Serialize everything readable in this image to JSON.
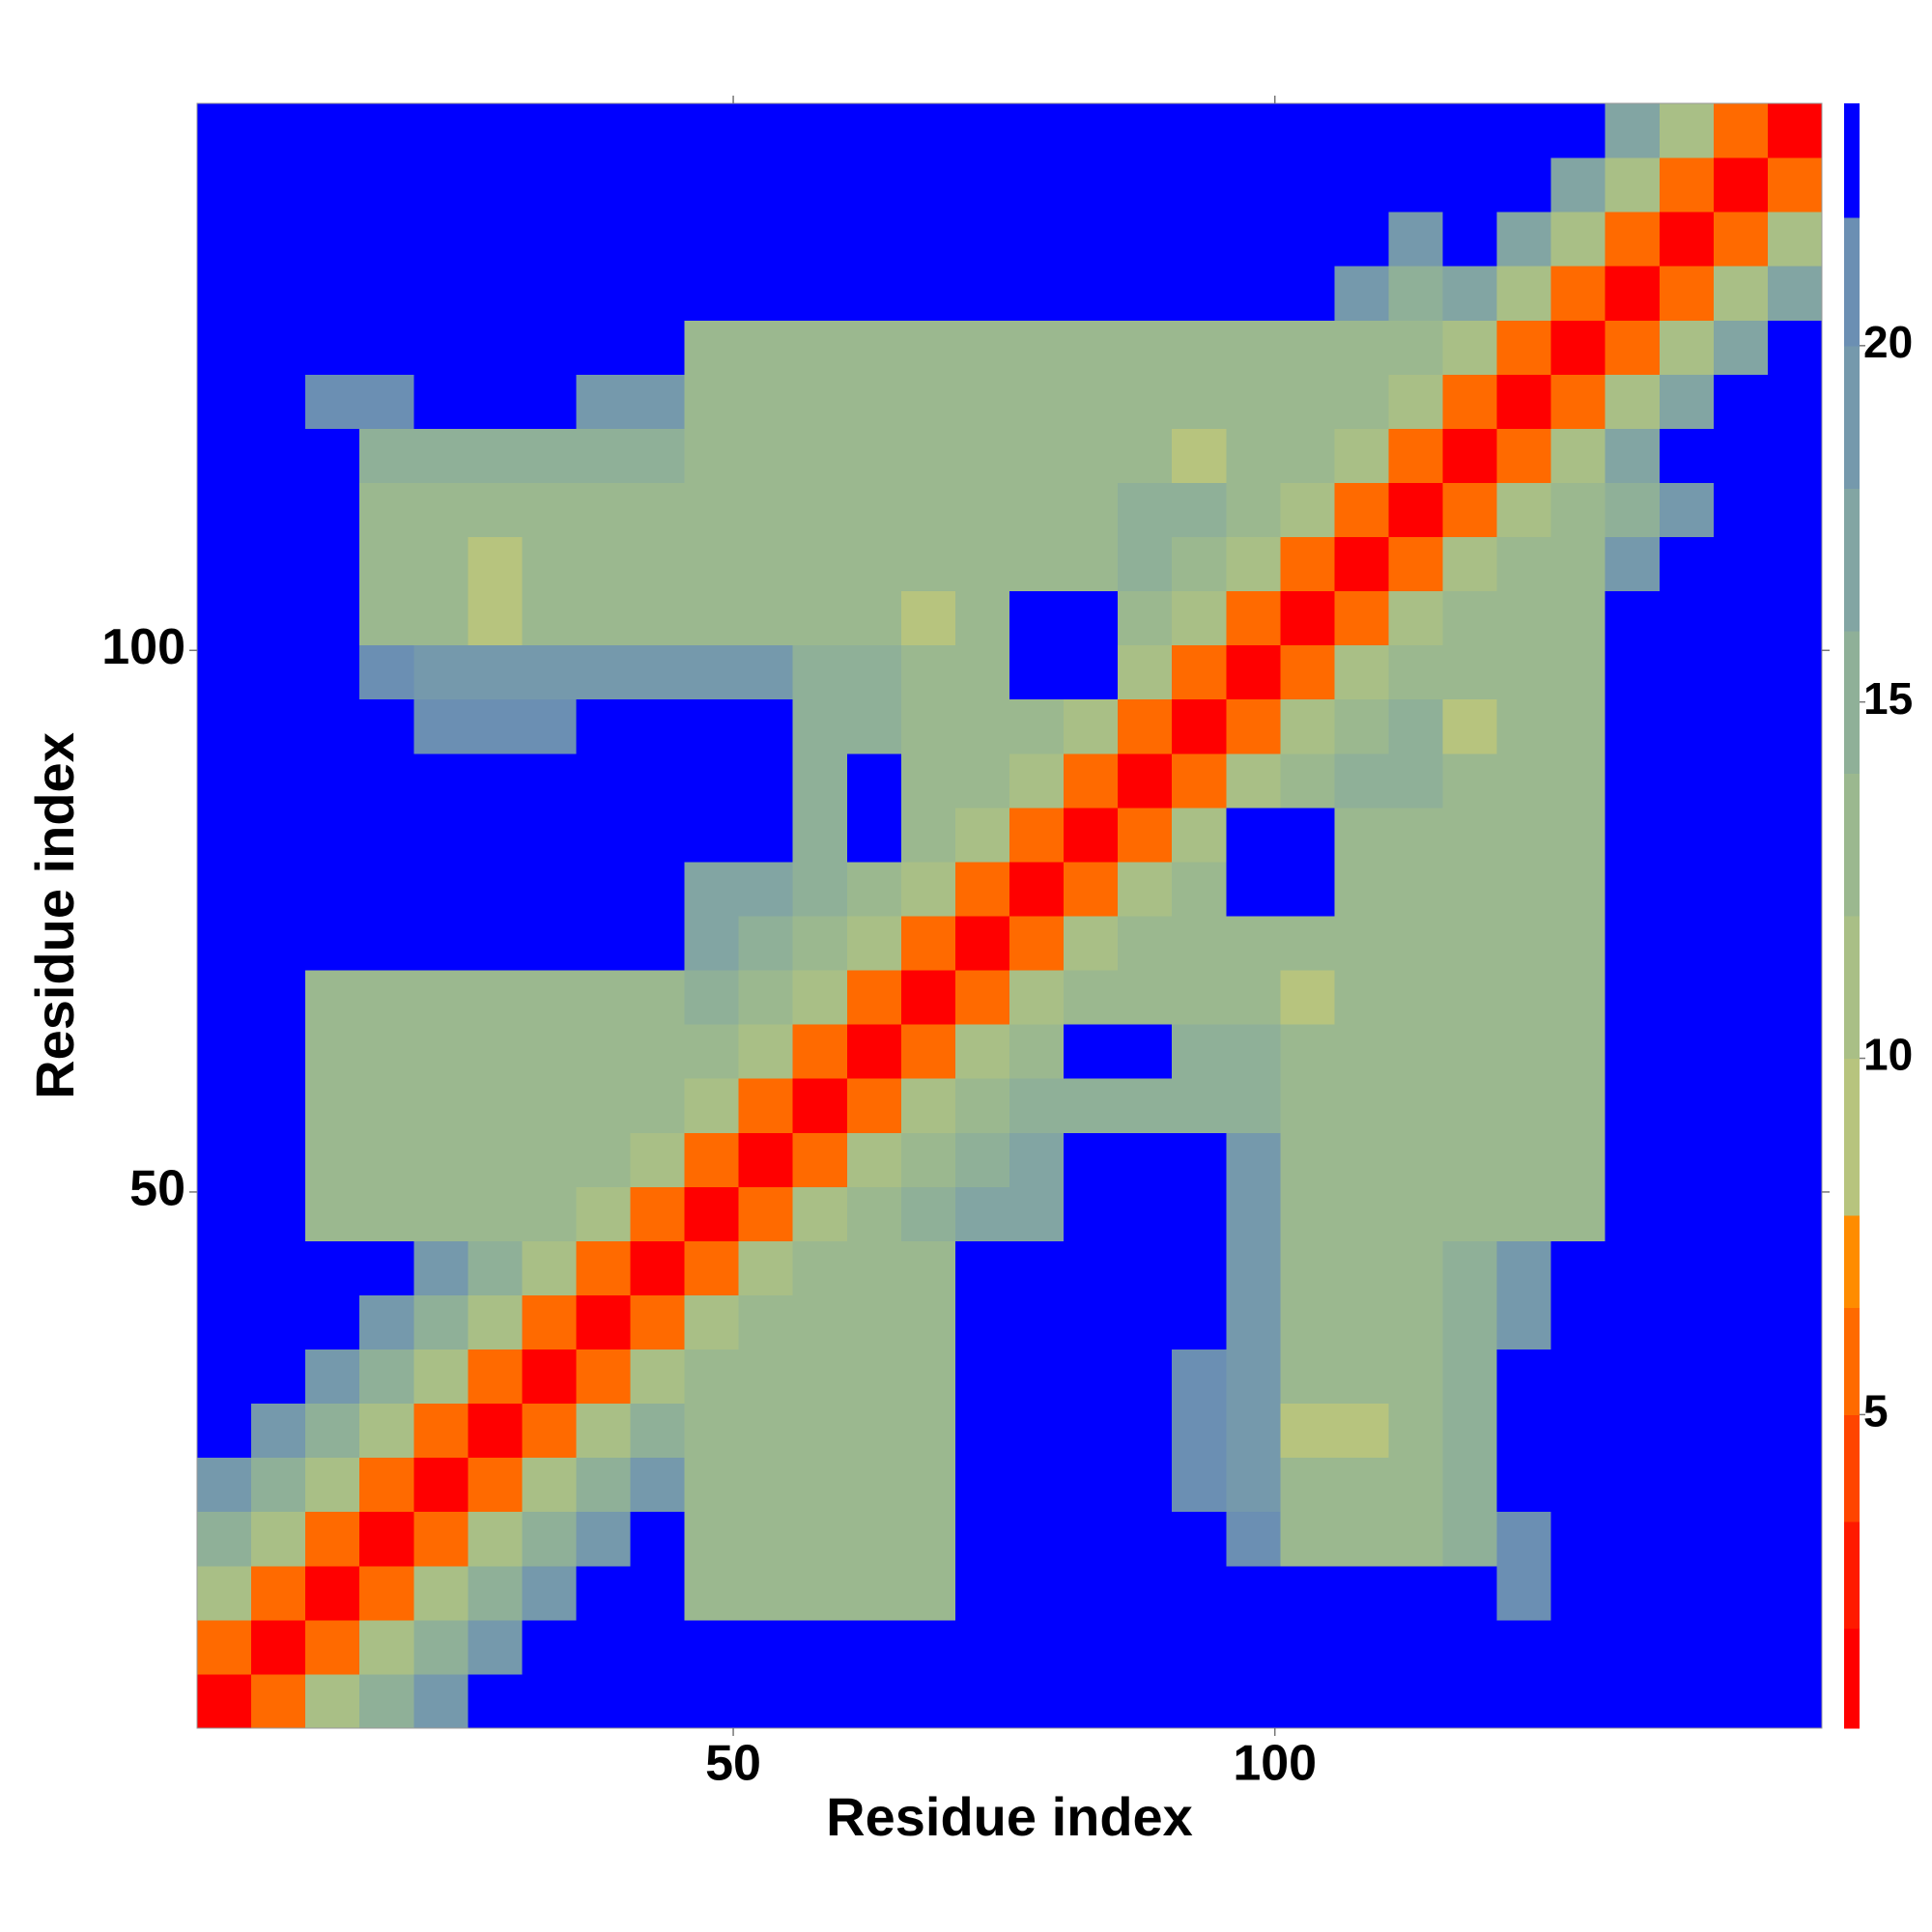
{
  "chart_data": {
    "type": "heatmap",
    "xlabel": "Residue index",
    "ylabel": "Residue index",
    "xlim": [
      0.5,
      150.5
    ],
    "ylim": [
      0.5,
      150.5
    ],
    "xticks": [
      50,
      100
    ],
    "yticks": [
      50,
      100
    ],
    "xbins": [
      0.5,
      5.5,
      10.5,
      15.5,
      20.5,
      25.5,
      30.5,
      35.5,
      40.5,
      45.5,
      50.5,
      55.5,
      60.5,
      65.5,
      70.5,
      75.5,
      80.5,
      85.5,
      90.5,
      95.5,
      100.5,
      105.5,
      110.5,
      115.5,
      120.5,
      125.5,
      130.5,
      135.5,
      140.5,
      145.5,
      150.5
    ],
    "ybins": [
      0.5,
      5.5,
      10.5,
      15.5,
      20.5,
      25.5,
      30.5,
      35.5,
      40.5,
      45.5,
      50.5,
      55.5,
      60.5,
      65.5,
      70.5,
      75.5,
      80.5,
      85.5,
      90.5,
      95.5,
      100.5,
      105.5,
      110.5,
      115.5,
      120.5,
      125.5,
      130.5,
      135.5,
      140.5,
      145.5,
      150.5
    ],
    "z": [
      [
        2,
        6,
        12,
        16,
        20,
        23,
        23,
        23,
        23,
        23,
        23,
        23,
        23,
        23,
        23,
        23,
        23,
        23,
        23,
        23,
        23,
        23,
        23,
        23,
        23,
        23,
        23,
        23,
        23,
        23
      ],
      [
        6,
        2,
        6,
        12,
        16,
        20,
        23,
        23,
        23,
        23,
        23,
        23,
        23,
        23,
        23,
        23,
        23,
        23,
        23,
        23,
        23,
        23,
        23,
        23,
        23,
        23,
        23,
        23,
        23,
        23
      ],
      [
        12,
        6,
        2,
        6,
        12,
        16,
        20,
        23,
        23,
        13,
        13,
        13,
        13,
        13,
        23,
        23,
        23,
        23,
        23,
        23,
        23,
        23,
        23,
        23,
        21,
        23,
        23,
        23,
        23,
        23
      ],
      [
        16,
        12,
        6,
        2,
        6,
        12,
        16,
        20,
        23,
        13,
        13,
        13,
        13,
        13,
        23,
        23,
        23,
        23,
        23,
        21,
        14,
        14,
        14,
        16,
        21,
        23,
        23,
        23,
        23,
        23
      ],
      [
        20,
        16,
        12,
        6,
        2,
        6,
        12,
        16,
        20,
        13,
        13,
        13,
        13,
        13,
        23,
        23,
        23,
        23,
        21,
        20,
        14,
        14,
        14,
        16,
        23,
        23,
        23,
        23,
        23,
        23
      ],
      [
        23,
        20,
        16,
        12,
        6,
        2,
        6,
        12,
        16,
        13,
        13,
        13,
        13,
        13,
        23,
        23,
        23,
        23,
        21,
        20,
        9,
        9,
        14,
        16,
        23,
        23,
        23,
        23,
        23,
        23
      ],
      [
        23,
        23,
        20,
        16,
        12,
        6,
        2,
        6,
        12,
        13,
        13,
        13,
        13,
        13,
        23,
        23,
        23,
        23,
        21,
        20,
        14,
        14,
        14,
        16,
        23,
        23,
        23,
        23,
        23,
        23
      ],
      [
        23,
        23,
        23,
        20,
        16,
        12,
        6,
        2,
        6,
        12,
        13,
        13,
        13,
        13,
        23,
        23,
        23,
        23,
        23,
        20,
        14,
        14,
        14,
        16,
        20,
        23,
        23,
        23,
        23,
        23
      ],
      [
        23,
        23,
        23,
        23,
        20,
        16,
        12,
        6,
        2,
        6,
        12,
        13,
        13,
        13,
        23,
        23,
        23,
        23,
        23,
        20,
        14,
        14,
        14,
        16,
        20,
        23,
        23,
        23,
        23,
        23
      ],
      [
        23,
        23,
        13,
        13,
        13,
        13,
        13,
        12,
        6,
        2,
        6,
        11,
        14,
        16,
        17,
        17,
        23,
        23,
        23,
        20,
        14,
        14,
        14,
        14,
        14,
        14,
        23,
        23,
        23,
        23
      ],
      [
        23,
        23,
        13,
        13,
        13,
        13,
        13,
        13,
        12,
        6,
        2,
        6,
        11,
        14,
        16,
        17,
        23,
        23,
        23,
        20,
        14,
        14,
        14,
        14,
        14,
        14,
        23,
        23,
        23,
        23
      ],
      [
        23,
        23,
        13,
        13,
        13,
        13,
        13,
        13,
        13,
        11,
        6,
        2,
        6,
        11,
        14,
        15,
        15,
        15,
        15,
        15,
        14,
        14,
        14,
        14,
        14,
        14,
        23,
        23,
        23,
        23
      ],
      [
        23,
        23,
        13,
        13,
        13,
        13,
        13,
        13,
        13,
        14,
        11,
        6,
        2,
        6,
        11,
        14,
        23,
        23,
        15,
        15,
        14,
        14,
        14,
        14,
        14,
        14,
        23,
        23,
        23,
        23
      ],
      [
        23,
        23,
        13,
        13,
        13,
        13,
        13,
        13,
        13,
        16,
        14,
        11,
        6,
        2,
        6,
        11,
        13,
        13,
        13,
        13,
        8,
        13,
        13,
        14,
        14,
        14,
        23,
        23,
        23,
        23
      ],
      [
        23,
        23,
        23,
        23,
        23,
        23,
        23,
        23,
        23,
        17,
        16,
        14,
        11,
        6,
        2,
        6,
        11,
        13,
        13,
        13,
        13,
        13,
        13,
        14,
        14,
        14,
        23,
        23,
        23,
        23
      ],
      [
        23,
        23,
        23,
        23,
        23,
        23,
        23,
        23,
        23,
        17,
        17,
        15,
        14,
        11,
        6,
        2,
        6,
        11,
        13,
        23,
        23,
        13,
        13,
        14,
        14,
        14,
        23,
        23,
        23,
        23
      ],
      [
        23,
        23,
        23,
        23,
        23,
        23,
        23,
        23,
        23,
        23,
        23,
        15,
        23,
        13,
        11,
        6,
        2,
        6,
        11,
        23,
        23,
        13,
        13,
        14,
        14,
        14,
        23,
        23,
        23,
        23
      ],
      [
        23,
        23,
        23,
        23,
        23,
        23,
        23,
        23,
        23,
        23,
        23,
        15,
        23,
        13,
        13,
        11,
        6,
        2,
        6,
        11,
        14,
        15,
        15,
        14,
        14,
        14,
        23,
        23,
        23,
        23
      ],
      [
        23,
        23,
        23,
        23,
        21,
        21,
        21,
        23,
        23,
        23,
        23,
        15,
        15,
        13,
        13,
        13,
        11,
        6,
        2,
        6,
        11,
        14,
        15,
        8,
        14,
        14,
        23,
        23,
        23,
        23
      ],
      [
        23,
        23,
        23,
        21,
        20,
        20,
        20,
        20,
        20,
        20,
        20,
        15,
        15,
        13,
        13,
        23,
        23,
        11,
        6,
        2,
        6,
        11,
        14,
        14,
        14,
        14,
        23,
        23,
        23,
        23
      ],
      [
        23,
        23,
        23,
        14,
        14,
        9,
        14,
        14,
        14,
        14,
        14,
        14,
        14,
        8,
        13,
        23,
        23,
        14,
        11,
        6,
        2,
        6,
        11,
        14,
        14,
        14,
        23,
        23,
        23,
        23
      ],
      [
        23,
        23,
        23,
        14,
        14,
        9,
        14,
        14,
        14,
        14,
        14,
        14,
        14,
        13,
        13,
        13,
        13,
        15,
        14,
        11,
        6,
        2,
        6,
        11,
        14,
        14,
        19,
        23,
        23,
        23
      ],
      [
        23,
        23,
        23,
        14,
        14,
        14,
        14,
        14,
        14,
        14,
        14,
        14,
        14,
        13,
        13,
        13,
        13,
        15,
        15,
        14,
        11,
        6,
        2,
        6,
        11,
        14,
        16,
        19,
        23,
        23
      ],
      [
        23,
        23,
        23,
        16,
        16,
        16,
        16,
        16,
        16,
        14,
        14,
        14,
        14,
        14,
        14,
        14,
        14,
        14,
        8,
        14,
        14,
        11,
        6,
        2,
        6,
        12,
        18,
        23,
        23,
        23
      ],
      [
        23,
        23,
        21,
        21,
        23,
        23,
        23,
        20,
        20,
        14,
        14,
        14,
        14,
        14,
        14,
        14,
        14,
        14,
        14,
        14,
        14,
        14,
        11,
        6,
        2,
        6,
        12,
        18,
        23,
        23
      ],
      [
        23,
        23,
        23,
        23,
        23,
        23,
        23,
        23,
        23,
        14,
        14,
        14,
        14,
        14,
        14,
        14,
        14,
        14,
        14,
        14,
        14,
        14,
        14,
        12,
        6,
        2,
        6,
        12,
        18,
        23
      ],
      [
        23,
        23,
        23,
        23,
        23,
        23,
        23,
        23,
        23,
        23,
        23,
        23,
        23,
        23,
        23,
        23,
        23,
        23,
        23,
        23,
        23,
        19,
        16,
        18,
        12,
        6,
        2,
        6,
        12,
        18
      ],
      [
        23,
        23,
        23,
        23,
        23,
        23,
        23,
        23,
        23,
        23,
        23,
        23,
        23,
        23,
        23,
        23,
        23,
        23,
        23,
        23,
        23,
        23,
        19,
        23,
        18,
        12,
        6,
        2,
        6,
        12
      ],
      [
        23,
        23,
        23,
        23,
        23,
        23,
        23,
        23,
        23,
        23,
        23,
        23,
        23,
        23,
        23,
        23,
        23,
        23,
        23,
        23,
        23,
        23,
        23,
        23,
        23,
        18,
        12,
        6,
        2,
        6
      ],
      [
        23,
        23,
        23,
        23,
        23,
        23,
        23,
        23,
        23,
        23,
        23,
        23,
        23,
        23,
        23,
        23,
        23,
        23,
        23,
        23,
        23,
        23,
        23,
        23,
        23,
        23,
        18,
        12,
        6,
        2
      ]
    ],
    "clim": [
      0.6,
      23.4
    ],
    "colorbar_ticks": [
      5,
      10,
      15,
      20
    ],
    "color_bounds": [
      0.6,
      2,
      3.5,
      5,
      6.5,
      7.8,
      10,
      12,
      14,
      16,
      18,
      20,
      21.8,
      23.4
    ],
    "colors": [
      "#ff0000",
      "#ff1a00",
      "#ff4500",
      "#ff6a00",
      "#ff8c00",
      "#b7c47e",
      "#a9bf86",
      "#9bb88f",
      "#8fb098",
      "#82a5a3",
      "#7599ac",
      "#6b8fb3",
      "#0000ff"
    ]
  }
}
